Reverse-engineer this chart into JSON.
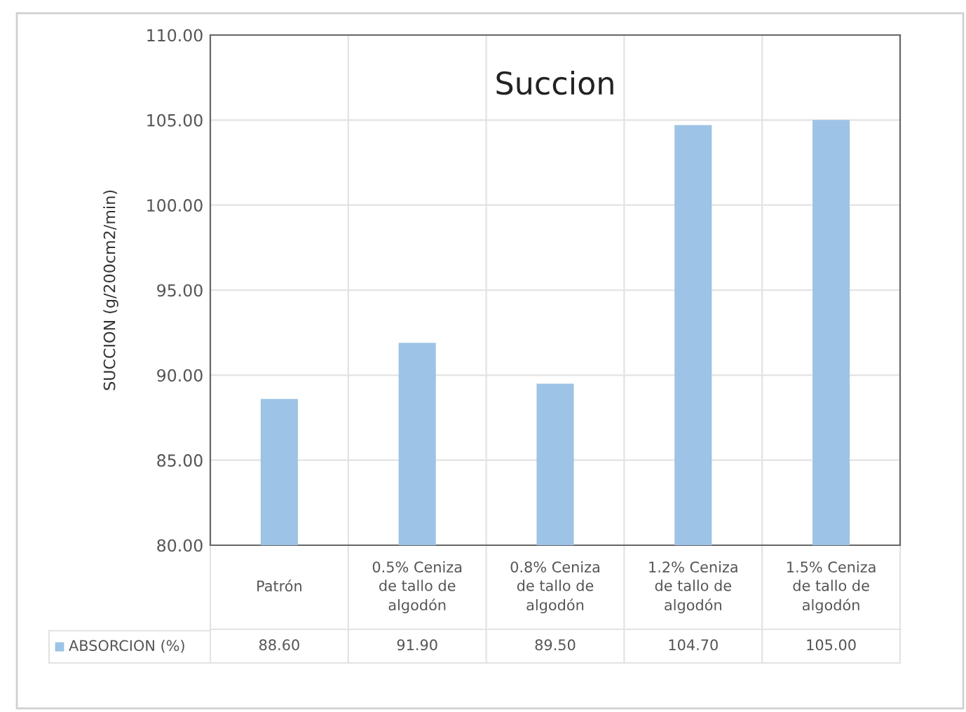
{
  "chart_data": {
    "type": "bar",
    "title": "Succion",
    "ylabel": "SUCCION (g/200cm2/min)",
    "categories": [
      "Patrón",
      "0.5% Ceniza de tallo de algodón",
      "0.8% Ceniza de tallo de algodón",
      "1.2% Ceniza de tallo de algodón",
      "1.5% Ceniza de tallo de algodón"
    ],
    "series": [
      {
        "name": "ABSORCION (%)",
        "color": "#9dc3e6",
        "values": [
          88.6,
          91.9,
          89.5,
          104.7,
          105.0
        ],
        "value_labels": [
          "88.60",
          "91.90",
          "89.50",
          "104.70",
          "105.00"
        ]
      }
    ],
    "ylim": [
      80,
      110
    ],
    "yticks": [
      {
        "value": 80,
        "label": "80.00"
      },
      {
        "value": 85,
        "label": "85.00"
      },
      {
        "value": 90,
        "label": "90.00"
      },
      {
        "value": 95,
        "label": "95.00"
      },
      {
        "value": 100,
        "label": "100.00"
      },
      {
        "value": 105,
        "label": "105.00"
      },
      {
        "value": 110,
        "label": "110.00"
      }
    ],
    "grid": true,
    "legend": "bottom"
  }
}
